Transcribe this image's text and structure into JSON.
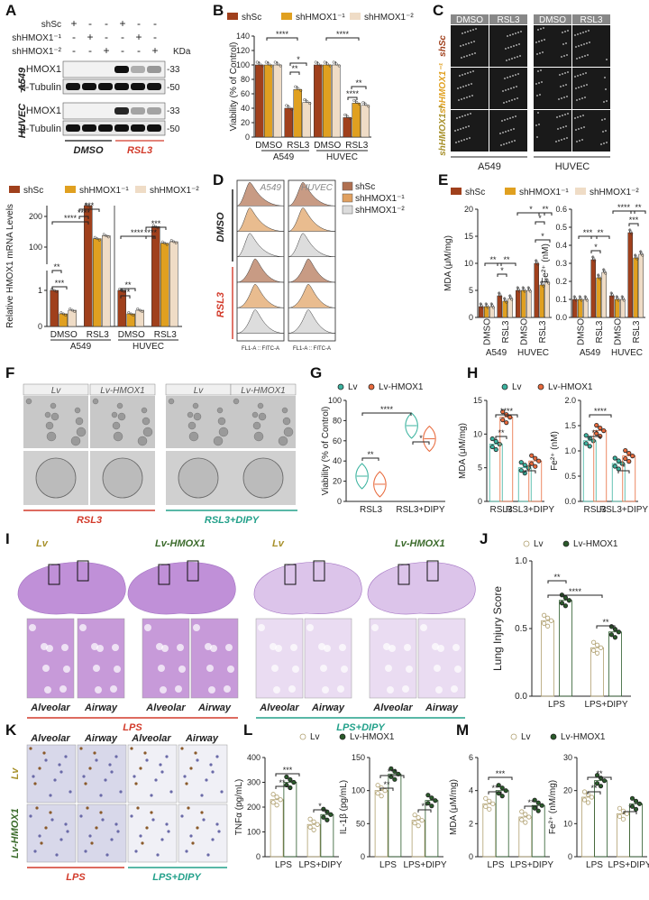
{
  "colors": {
    "shSc": "#a0401c",
    "sh1": "#e0a020",
    "sh2": "#efdcc6",
    "lv_teal": "#3bb39f",
    "lv_orange": "#e86a3c",
    "lv_open": "#cfc8a6",
    "lv_dark": "#2a5a2a",
    "red_label": "#d23a2a",
    "teal_label": "#22a08a",
    "olive": "#a7902a",
    "dark_green": "#3a6a2a",
    "tissue": "#b070c0"
  },
  "panels": {
    "A": "A",
    "B": "B",
    "C": "C",
    "D": "D",
    "E": "E",
    "F": "F",
    "G": "G",
    "H": "H",
    "I": "I",
    "J": "J",
    "K": "K",
    "L": "L",
    "M": "M"
  },
  "A": {
    "rows": [
      "shSc",
      "shHMOX1⁻¹",
      "shHMOX1⁻²"
    ],
    "signs": [
      [
        "+",
        "-",
        "-",
        "+",
        "-",
        "-"
      ],
      [
        "-",
        "+",
        "-",
        "-",
        "+",
        "-"
      ],
      [
        "-",
        "-",
        "+",
        "-",
        "-",
        "+"
      ]
    ],
    "kda": "KDa",
    "cells": [
      "A549",
      "HUVEC"
    ],
    "bands": [
      "HMOX1",
      "β-Tubulin"
    ],
    "mw": [
      "-33",
      "-50"
    ],
    "groups": [
      "DMSO",
      "RSL3"
    ]
  },
  "legend3": [
    "shSc",
    "shHMOX1⁻¹",
    "shHMOX1⁻²"
  ],
  "legend_lv": [
    "Lv",
    "Lv-HMOX1"
  ],
  "B_chart": {
    "type": "bar",
    "ylabel": "Viability (% of Control)",
    "ylim": [
      0,
      140
    ],
    "ticks": [
      "0",
      "20",
      "40",
      "60",
      "80",
      "100",
      "120",
      "140"
    ],
    "categories": [
      "DMSO",
      "RSL3",
      "DMSO",
      "RSL3"
    ],
    "groups": [
      "A549",
      "HUVEC"
    ],
    "series": [
      {
        "name": "shSc",
        "values": [
          100,
          40,
          100,
          27
        ]
      },
      {
        "name": "shHMOX1⁻¹",
        "values": [
          100,
          66,
          100,
          47
        ]
      },
      {
        "name": "shHMOX1⁻²",
        "values": [
          100,
          48,
          100,
          44
        ]
      }
    ],
    "stars": [
      "****",
      "*",
      "**",
      "****",
      "**",
      "****"
    ]
  },
  "C": {
    "cols": [
      "DMSO",
      "RSL3",
      "DMSO",
      "RSL3"
    ],
    "rows": [
      "shSc",
      "shHMOX1⁻¹",
      "shHMOX1⁻²"
    ],
    "cells": [
      "A549",
      "HUVEC"
    ]
  },
  "Alow_chart": {
    "type": "bar",
    "ylabel": "Relative HMOX1 mRNA Levels",
    "ticks_low": [
      "0",
      "1"
    ],
    "ticks_high": [
      "100",
      "200"
    ],
    "ylim": [
      0,
      300
    ],
    "categories": [
      "DMSO",
      "RSL3",
      "DMSO",
      "RSL3"
    ],
    "groups": [
      "A549",
      "HUVEC"
    ],
    "series": [
      {
        "name": "shSc",
        "values": [
          1,
          240,
          1,
          170
        ]
      },
      {
        "name": "shHMOX1⁻¹",
        "values": [
          0.35,
          130,
          0.35,
          115
        ]
      },
      {
        "name": "shHMOX1⁻²",
        "values": [
          0.45,
          140,
          0.45,
          120
        ]
      }
    ],
    "stars": [
      "****",
      "****",
      "***",
      "**",
      "***",
      "****",
      "****",
      "***",
      "***",
      "**"
    ]
  },
  "D": {
    "cells": [
      "A549",
      "HUVEC"
    ],
    "groups": [
      "DMSO",
      "RSL3"
    ],
    "xlabel": "FL1-A :: FITC-A"
  },
  "E_chart": {
    "ylabel1": "MDA (μM/mg)",
    "ylabel2": "Fe²⁺ (nM)",
    "ticks1": [
      "0",
      "5",
      "10",
      "15",
      "20"
    ],
    "ticks2": [
      "0.0",
      "0.1",
      "0.2",
      "0.3",
      "0.4",
      "0.5",
      "0.6"
    ],
    "categories": [
      "DMSO",
      "RSL3",
      "DMSO",
      "RSL3"
    ],
    "groups": [
      "A549",
      "HUVEC"
    ],
    "mda": {
      "series": [
        {
          "name": "shSc",
          "values": [
            2,
            4,
            5,
            10
          ]
        },
        {
          "name": "shHMOX1⁻¹",
          "values": [
            2,
            3,
            5,
            6
          ]
        },
        {
          "name": "shHMOX1⁻²",
          "values": [
            2,
            3.5,
            5,
            6.5
          ]
        }
      ]
    },
    "fe": {
      "series": [
        {
          "name": "shSc",
          "values": [
            0.1,
            0.32,
            0.12,
            0.47
          ]
        },
        {
          "name": "shHMOX1⁻¹",
          "values": [
            0.1,
            0.22,
            0.1,
            0.33
          ]
        },
        {
          "name": "shHMOX1⁻²",
          "values": [
            0.1,
            0.25,
            0.1,
            0.35
          ]
        }
      ]
    },
    "stars": [
      "**",
      "**",
      "*",
      "*",
      "**",
      "*",
      "*",
      "***",
      "**",
      "*",
      "****",
      "**",
      "***"
    ]
  },
  "F": {
    "cols": [
      "Lv",
      "Lv-HMOX1",
      "Lv",
      "Lv-HMOX1"
    ],
    "groups": [
      "RSL3",
      "RSL3+DIPY"
    ]
  },
  "G_chart": {
    "type": "violin",
    "ylabel": "Viability (% of Control)",
    "ticks": [
      "0",
      "20",
      "40",
      "60",
      "80",
      "100"
    ],
    "categories": [
      "RSL3",
      "RSL3+DIPY"
    ],
    "series": [
      {
        "name": "Lv",
        "values": [
          25,
          75
        ]
      },
      {
        "name": "Lv-HMOX1",
        "values": [
          17,
          62
        ]
      }
    ],
    "stars": [
      "****",
      "**",
      "*"
    ]
  },
  "H_chart": {
    "ylabel1": "MDA (μM/mg)",
    "ylabel2": "Fe²⁺ (nM)",
    "ticks1": [
      "0",
      "5",
      "10",
      "15"
    ],
    "ticks2": [
      "0.0",
      "0.5",
      "1.0",
      "1.5",
      "2.0"
    ],
    "categories": [
      "RSL3",
      "RSL3+DIPY"
    ],
    "mda": {
      "series": [
        {
          "name": "Lv",
          "values": [
            8.5,
            5
          ]
        },
        {
          "name": "Lv-HMOX1",
          "values": [
            12.5,
            6
          ]
        }
      ]
    },
    "fe": {
      "series": [
        {
          "name": "Lv",
          "values": [
            1.2,
            0.75
          ]
        },
        {
          "name": "Lv-HMOX1",
          "values": [
            1.4,
            0.9
          ]
        }
      ]
    },
    "stars": [
      "****",
      "**",
      "*",
      "****",
      "**",
      "*"
    ]
  },
  "I": {
    "labels": [
      "Lv",
      "Lv-HMOX1",
      "Lv",
      "Lv-HMOX1"
    ],
    "sub": [
      "Alveolar",
      "Airway"
    ],
    "groups": [
      "LPS",
      "LPS+DIPY"
    ]
  },
  "J_chart": {
    "type": "bar",
    "ylabel": "Lung Injury Score",
    "ticks": [
      "0.0",
      "0.5",
      "1.0"
    ],
    "ylim": [
      0,
      1.2
    ],
    "categories": [
      "LPS",
      "LPS+DIPY"
    ],
    "series": [
      {
        "name": "Lv",
        "values": [
          0.67,
          0.43
        ]
      },
      {
        "name": "Lv-HMOX1",
        "values": [
          0.85,
          0.57
        ]
      }
    ],
    "stars": [
      "****",
      "**",
      "**"
    ]
  },
  "K": {
    "cols": [
      "Alveolar",
      "Airway",
      "Alveolar",
      "Airway"
    ],
    "rows": [
      "Lv",
      "Lv-HMOX1"
    ],
    "groups": [
      "LPS",
      "LPS+DIPY"
    ]
  },
  "L_chart": {
    "ylabel1": "TNFα (pg/mL)",
    "ylabel2": "IL-1β (pg/mL)",
    "ticks1": [
      "0",
      "100",
      "200",
      "300",
      "400"
    ],
    "ticks2": [
      "0",
      "50",
      "100",
      "150"
    ],
    "categories": [
      "LPS",
      "LPS+DIPY"
    ],
    "tnf": {
      "series": [
        {
          "name": "Lv",
          "values": [
            230,
            130
          ]
        },
        {
          "name": "Lv-HMOX1",
          "values": [
            300,
            170
          ]
        }
      ]
    },
    "il1b": {
      "series": [
        {
          "name": "Lv",
          "values": [
            100,
            55
          ]
        },
        {
          "name": "Lv-HMOX1",
          "values": [
            125,
            85
          ]
        }
      ]
    },
    "stars": [
      "***",
      "**",
      "*",
      "***",
      "**",
      "**"
    ]
  },
  "M_chart": {
    "ylabel1": "MDA (μM/mg)",
    "ylabel2": "Fe²⁺ (nM/mg)",
    "ticks1": [
      "0",
      "2",
      "4",
      "6"
    ],
    "ticks2": [
      "0",
      "10",
      "20",
      "30"
    ],
    "categories": [
      "LPS",
      "LPS+DIPY"
    ],
    "mda": {
      "series": [
        {
          "name": "Lv",
          "values": [
            3.2,
            2.4
          ]
        },
        {
          "name": "Lv-HMOX1",
          "values": [
            4.0,
            3.1
          ]
        }
      ]
    },
    "fe": {
      "series": [
        {
          "name": "Lv",
          "values": [
            18,
            13
          ]
        },
        {
          "name": "Lv-HMOX1",
          "values": [
            23,
            16
          ]
        }
      ]
    },
    "stars": [
      "***",
      "**",
      "**",
      "**",
      "**",
      "*"
    ]
  }
}
